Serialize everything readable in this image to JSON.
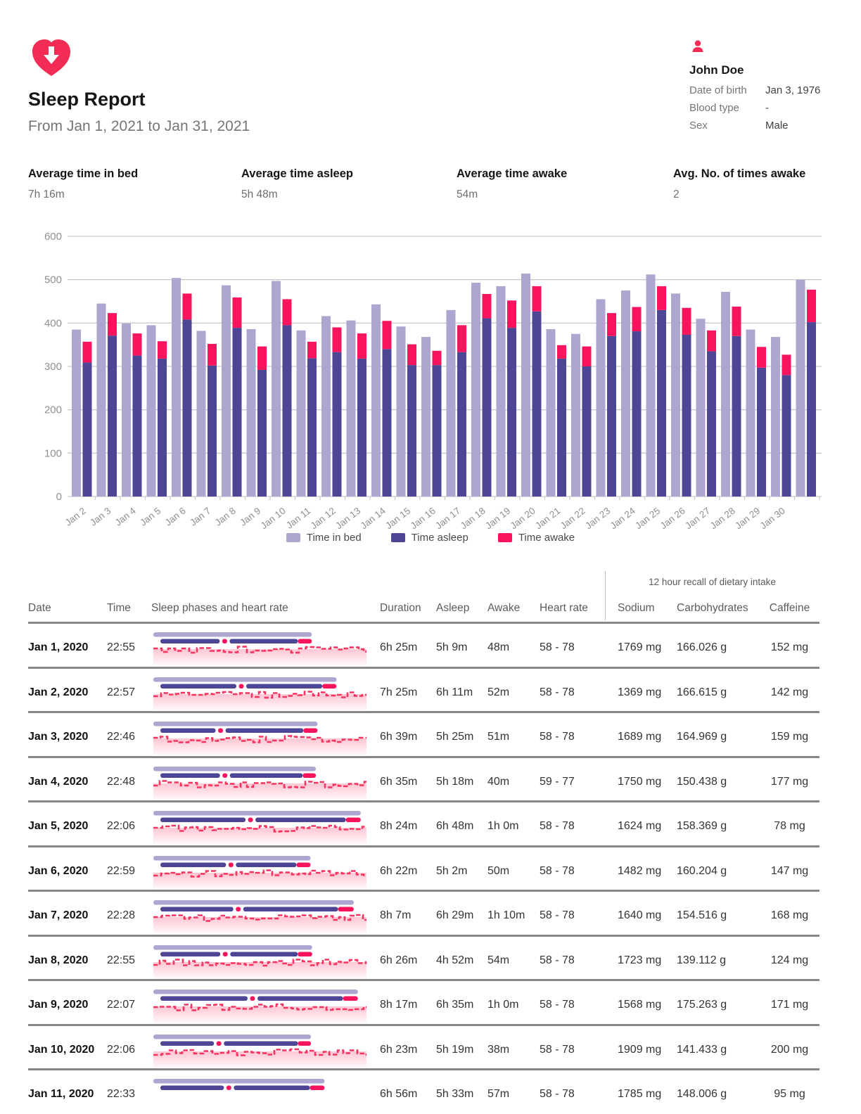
{
  "header": {
    "title": "Sleep Report",
    "subtitle": "From Jan 1, 2021 to Jan 31, 2021"
  },
  "patient": {
    "name": "John Doe",
    "fields": [
      {
        "label": "Date of birth",
        "value": "Jan 3, 1976"
      },
      {
        "label": "Blood type",
        "value": "-"
      },
      {
        "label": "Sex",
        "value": "Male"
      }
    ]
  },
  "summary": [
    {
      "label": "Average time in bed",
      "value": "7h 16m"
    },
    {
      "label": "Average time asleep",
      "value": "5h 48m"
    },
    {
      "label": "Average time awake",
      "value": "54m"
    },
    {
      "label": "Avg. No. of times awake",
      "value": "2"
    }
  ],
  "colors": {
    "accent_pink": "#F22C55",
    "time_in_bed": "#ACA6D0",
    "time_asleep": "#4D4694",
    "time_awake": "#F9145E",
    "heart_rate_line": "#F7325F",
    "grid": "#cbcbcb",
    "axis_text": "#8f8f8f",
    "row_rule": "#878787"
  },
  "chart_data": {
    "type": "bar",
    "title": "",
    "xlabel": "",
    "ylabel": "",
    "ylim": [
      0,
      600
    ],
    "ytick_step": 100,
    "grid": true,
    "legend_position": "bottom",
    "categories": [
      "Jan 2",
      "Jan 3",
      "Jan 4",
      "Jan 5",
      "Jan 6",
      "Jan 7",
      "Jan 8",
      "Jan 9",
      "Jan 10",
      "Jan 11",
      "Jan 12",
      "Jan 13",
      "Jan 14",
      "Jan 15",
      "Jan 16",
      "Jan 17",
      "Jan 18",
      "Jan 19",
      "Jan 20",
      "Jan 21",
      "Jan 22",
      "Jan 23",
      "Jan 24",
      "Jan 25",
      "Jan 26",
      "Jan 27",
      "Jan 28",
      "Jan 29",
      "Jan 30",
      ""
    ],
    "series": [
      {
        "name": "Time in bed",
        "color": "#ACA6D0",
        "values": [
          385,
          445,
          399,
          395,
          504,
          382,
          487,
          386,
          497,
          383,
          416,
          406,
          443,
          392,
          368,
          430,
          493,
          485,
          514,
          386,
          375,
          455,
          475,
          512,
          468,
          410,
          472,
          385,
          368,
          500
        ]
      },
      {
        "name": "Time asleep",
        "color": "#4D4694",
        "values": [
          309,
          371,
          325,
          318,
          408,
          302,
          389,
          292,
          395,
          319,
          333,
          318,
          340,
          303,
          303,
          333,
          411,
          389,
          427,
          318,
          300,
          370,
          381,
          430,
          373,
          335,
          370,
          297,
          280,
          402
        ]
      },
      {
        "name": "Time awake",
        "color": "#F9145E",
        "stacked_on": "Time asleep",
        "values": [
          48,
          52,
          51,
          40,
          60,
          50,
          70,
          54,
          60,
          38,
          57,
          58,
          65,
          48,
          33,
          62,
          56,
          63,
          58,
          31,
          46,
          53,
          56,
          55,
          62,
          48,
          68,
          48,
          47,
          75
        ]
      }
    ]
  },
  "table": {
    "group_header": "12 hour recall of dietary intake",
    "columns": [
      "Date",
      "Time",
      "Sleep phases and heart rate",
      "Duration",
      "Asleep",
      "Awake",
      "Heart rate",
      "Sodium",
      "Carbohydrates",
      "Caffeine"
    ],
    "rows": [
      {
        "date": "Jan 1, 2020",
        "time": "22:55",
        "duration": "6h 25m",
        "asleep": "5h 9m",
        "awake": "48m",
        "heart_rate": "58 - 78",
        "sodium": "1769 mg",
        "carbohydrates": "166.026 g",
        "caffeine": "152 mg",
        "duration_min": 385,
        "asleep_min": 309,
        "awake_min": 48
      },
      {
        "date": "Jan 2, 2020",
        "time": "22:57",
        "duration": "7h 25m",
        "asleep": "6h 11m",
        "awake": "52m",
        "heart_rate": "58 - 78",
        "sodium": "1369 mg",
        "carbohydrates": "166.615 g",
        "caffeine": "142 mg",
        "duration_min": 445,
        "asleep_min": 371,
        "awake_min": 52
      },
      {
        "date": "Jan 3, 2020",
        "time": "22:46",
        "duration": "6h 39m",
        "asleep": "5h 25m",
        "awake": "51m",
        "heart_rate": "58 - 78",
        "sodium": "1689 mg",
        "carbohydrates": "164.969 g",
        "caffeine": "159 mg",
        "duration_min": 399,
        "asleep_min": 325,
        "awake_min": 51
      },
      {
        "date": "Jan 4, 2020",
        "time": "22:48",
        "duration": "6h 35m",
        "asleep": "5h 18m",
        "awake": "40m",
        "heart_rate": "59 - 77",
        "sodium": "1750 mg",
        "carbohydrates": "150.438 g",
        "caffeine": "177 mg",
        "duration_min": 395,
        "asleep_min": 318,
        "awake_min": 40
      },
      {
        "date": "Jan 5, 2020",
        "time": "22:06",
        "duration": "8h 24m",
        "asleep": "6h 48m",
        "awake": "1h 0m",
        "heart_rate": "58 - 78",
        "sodium": "1624 mg",
        "carbohydrates": "158.369 g",
        "caffeine": "78 mg",
        "duration_min": 504,
        "asleep_min": 408,
        "awake_min": 60
      },
      {
        "date": "Jan 6, 2020",
        "time": "22:59",
        "duration": "6h 22m",
        "asleep": "5h 2m",
        "awake": "50m",
        "heart_rate": "58 - 78",
        "sodium": "1482 mg",
        "carbohydrates": "160.204 g",
        "caffeine": "147 mg",
        "duration_min": 382,
        "asleep_min": 302,
        "awake_min": 50
      },
      {
        "date": "Jan 7, 2020",
        "time": "22:28",
        "duration": "8h 7m",
        "asleep": "6h 29m",
        "awake": "1h 10m",
        "heart_rate": "58 - 78",
        "sodium": "1640 mg",
        "carbohydrates": "154.516 g",
        "caffeine": "168 mg",
        "duration_min": 487,
        "asleep_min": 389,
        "awake_min": 70
      },
      {
        "date": "Jan 8, 2020",
        "time": "22:55",
        "duration": "6h 26m",
        "asleep": "4h 52m",
        "awake": "54m",
        "heart_rate": "58 - 78",
        "sodium": "1723 mg",
        "carbohydrates": "139.112 g",
        "caffeine": "124 mg",
        "duration_min": 386,
        "asleep_min": 292,
        "awake_min": 54
      },
      {
        "date": "Jan 9, 2020",
        "time": "22:07",
        "duration": "8h 17m",
        "asleep": "6h 35m",
        "awake": "1h 0m",
        "heart_rate": "58 - 78",
        "sodium": "1568 mg",
        "carbohydrates": "175.263 g",
        "caffeine": "171 mg",
        "duration_min": 497,
        "asleep_min": 395,
        "awake_min": 60
      },
      {
        "date": "Jan 10, 2020",
        "time": "22:06",
        "duration": "6h 23m",
        "asleep": "5h 19m",
        "awake": "38m",
        "heart_rate": "58 - 78",
        "sodium": "1909 mg",
        "carbohydrates": "141.433 g",
        "caffeine": "200 mg",
        "duration_min": 383,
        "asleep_min": 319,
        "awake_min": 38
      },
      {
        "date": "Jan 11, 2020",
        "time": "22:33",
        "duration": "6h 56m",
        "asleep": "5h 33m",
        "awake": "57m",
        "heart_rate": "58 - 78",
        "sodium": "1785 mg",
        "carbohydrates": "148.006 g",
        "caffeine": "95 mg",
        "duration_min": 416,
        "asleep_min": 333,
        "awake_min": 57
      }
    ]
  }
}
